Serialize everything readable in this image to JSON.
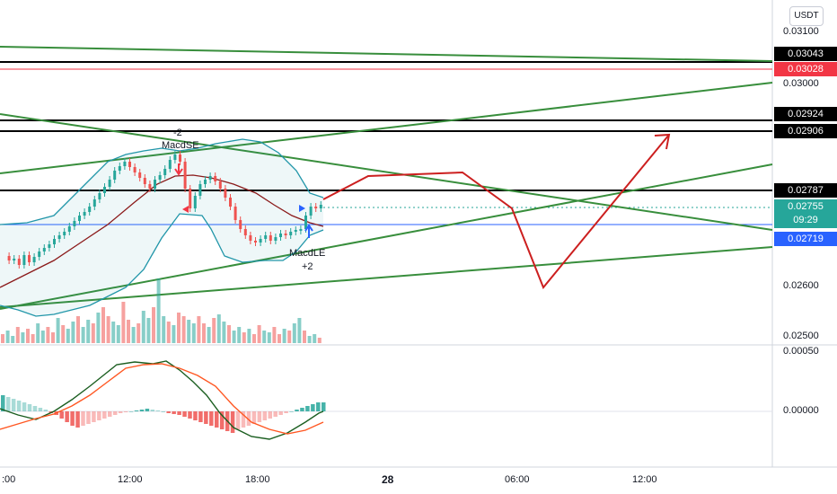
{
  "axis": {
    "currency": "USDT",
    "price_ticks": [
      "0.03100",
      "0.03000",
      "0.02600",
      "0.02500"
    ],
    "macd_ticks": [
      "0.00050",
      "0.00000"
    ],
    "time_ticks": [
      ":00",
      "12:00",
      "18:00",
      "28",
      "06:00",
      "12:00"
    ]
  },
  "price_labels": [
    {
      "text": "0.03043",
      "bg": "#000000",
      "fg": "#ffffff"
    },
    {
      "text": "0.03028",
      "bg": "#f23645",
      "fg": "#ffffff"
    },
    {
      "text": "0.02924",
      "bg": "#000000",
      "fg": "#ffffff"
    },
    {
      "text": "0.02906",
      "bg": "#000000",
      "fg": "#ffffff"
    },
    {
      "text": "0.02787",
      "bg": "#000000",
      "fg": "#ffffff"
    },
    {
      "text": "0.02719",
      "bg": "#2962ff",
      "fg": "#ffffff"
    }
  ],
  "current_price": {
    "price": "0.02755",
    "countdown": "09:29",
    "color": "#26a69a"
  },
  "signals": {
    "short": {
      "count": "-2",
      "name": "MacdSE"
    },
    "long": {
      "name": "MacdLE",
      "count": "+2"
    }
  },
  "colors": {
    "up": "#26a69a",
    "down": "#ef5350",
    "trend": "#388e3c",
    "drawing": "#cc1f1f",
    "bb": "#2196a9",
    "ma": "#8b1a1a"
  }
}
